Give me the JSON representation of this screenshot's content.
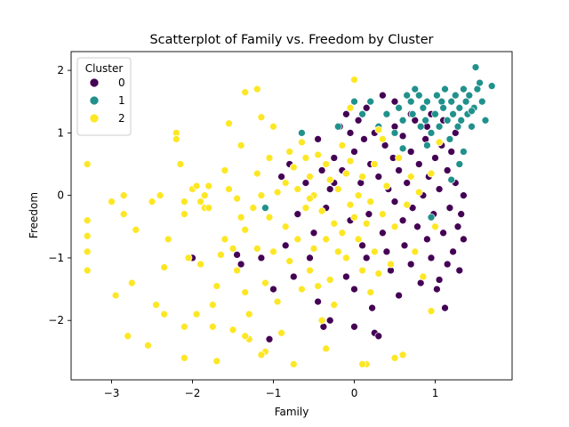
{
  "chart_data": {
    "type": "scatter",
    "title": "Scatterplot of Family vs. Freedom by Cluster",
    "xlabel": "Family",
    "ylabel": "Freedom",
    "xlim": [
      -3.5,
      1.95
    ],
    "ylim": [
      -2.95,
      2.3
    ],
    "xticks": [
      -3,
      -2,
      -1,
      0,
      1
    ],
    "yticks": [
      -2,
      -1,
      0,
      1,
      2
    ],
    "xtick_labels": [
      "−3",
      "−2",
      "−1",
      "0",
      "1"
    ],
    "ytick_labels": [
      "−2",
      "−1",
      "0",
      "1",
      "2"
    ],
    "grid": false,
    "legend": {
      "title": "Cluster",
      "placement": "top-left",
      "entries": [
        "0",
        "1",
        "2"
      ]
    },
    "series": [
      {
        "name": "0",
        "color": "#440154",
        "points": [
          [
            -2.0,
            -1.0
          ],
          [
            -1.45,
            -0.95
          ],
          [
            -1.4,
            -1.1
          ],
          [
            -1.15,
            -1.0
          ],
          [
            -1.05,
            -2.3
          ],
          [
            -1.0,
            -1.5
          ],
          [
            -0.9,
            0.3
          ],
          [
            -0.85,
            -0.8
          ],
          [
            -0.8,
            0.5
          ],
          [
            -0.75,
            -1.3
          ],
          [
            -0.7,
            -0.3
          ],
          [
            -0.6,
            0.2
          ],
          [
            -0.55,
            -1.0
          ],
          [
            -0.5,
            -0.6
          ],
          [
            -0.45,
            0.9
          ],
          [
            -0.45,
            -1.7
          ],
          [
            -0.4,
            0.4
          ],
          [
            -0.38,
            -2.1
          ],
          [
            -0.35,
            -0.2
          ],
          [
            -0.3,
            0.1
          ],
          [
            -0.3,
            -2.0
          ],
          [
            -0.25,
            0.6
          ],
          [
            -0.2,
            -0.9
          ],
          [
            -0.18,
            1.1
          ],
          [
            -0.15,
            0.4
          ],
          [
            -0.1,
            -1.3
          ],
          [
            -0.1,
            1.3
          ],
          [
            -0.05,
            -0.4
          ],
          [
            0.0,
            0.7
          ],
          [
            0.0,
            -1.5
          ],
          [
            0.05,
            1.2
          ],
          [
            0.08,
            0.2
          ],
          [
            0.1,
            -0.8
          ],
          [
            0.12,
            0.9
          ],
          [
            0.15,
            1.4
          ],
          [
            0.18,
            -0.3
          ],
          [
            0.2,
            0.5
          ],
          [
            0.22,
            -1.8
          ],
          [
            0.25,
            1.0
          ],
          [
            0.25,
            -2.2
          ],
          [
            0.3,
            0.3
          ],
          [
            0.3,
            -2.25
          ],
          [
            0.35,
            -0.6
          ],
          [
            0.38,
            0.8
          ],
          [
            0.4,
            1.3
          ],
          [
            0.42,
            0.1
          ],
          [
            0.45,
            -1.2
          ],
          [
            0.48,
            0.6
          ],
          [
            0.5,
            -0.1
          ],
          [
            0.5,
            1.1
          ],
          [
            0.55,
            -1.6
          ],
          [
            0.55,
            0.4
          ],
          [
            0.6,
            -0.4
          ],
          [
            0.6,
            0.95
          ],
          [
            0.62,
            -0.8
          ],
          [
            0.65,
            0.2
          ],
          [
            0.7,
            -1.1
          ],
          [
            0.7,
            0.7
          ],
          [
            0.72,
            -0.2
          ],
          [
            0.75,
            1.2
          ],
          [
            0.78,
            -0.5
          ],
          [
            0.8,
            0.5
          ],
          [
            0.82,
            -1.4
          ],
          [
            0.85,
            0.0
          ],
          [
            0.88,
            0.9
          ],
          [
            0.9,
            -0.7
          ],
          [
            0.92,
            0.3
          ],
          [
            0.95,
            -1.0
          ],
          [
            0.95,
            1.3
          ],
          [
            0.98,
            -0.3
          ],
          [
            1.0,
            0.6
          ],
          [
            1.02,
            -1.5
          ],
          [
            1.05,
            0.1
          ],
          [
            1.08,
            0.8
          ],
          [
            1.1,
            -0.6
          ],
          [
            1.12,
            -1.8
          ],
          [
            1.15,
            0.4
          ],
          [
            1.15,
            -1.1
          ],
          [
            1.18,
            -0.2
          ],
          [
            1.2,
            0.7
          ],
          [
            1.22,
            -0.9
          ],
          [
            1.25,
            0.2
          ],
          [
            1.28,
            -0.5
          ],
          [
            1.3,
            -1.2
          ],
          [
            1.3,
            0.5
          ],
          [
            1.32,
            -0.3
          ],
          [
            1.35,
            -0.7
          ],
          [
            1.35,
            0.0
          ],
          [
            1.25,
            1.0
          ],
          [
            1.1,
            1.2
          ],
          [
            0.9,
            1.1
          ],
          [
            0.7,
            1.3
          ],
          [
            0.5,
            1.5
          ],
          [
            -0.25,
            0.2
          ],
          [
            0.15,
            -1.0
          ],
          [
            0.0,
            -2.1
          ],
          [
            0.35,
            1.6
          ],
          [
            -0.05,
            1.0
          ],
          [
            0.4,
            -0.9
          ],
          [
            1.05,
            -1.35
          ]
        ]
      },
      {
        "name": "1",
        "color": "#21918c",
        "points": [
          [
            -1.1,
            -0.2
          ],
          [
            -0.65,
            1.0
          ],
          [
            -0.2,
            1.1
          ],
          [
            0.0,
            1.5
          ],
          [
            0.1,
            1.3
          ],
          [
            0.2,
            1.5
          ],
          [
            0.3,
            1.1
          ],
          [
            0.4,
            1.3
          ],
          [
            0.5,
            1.0
          ],
          [
            0.55,
            1.4
          ],
          [
            0.6,
            1.2
          ],
          [
            0.65,
            1.6
          ],
          [
            0.7,
            1.5
          ],
          [
            0.72,
            1.3
          ],
          [
            0.75,
            1.7
          ],
          [
            0.8,
            1.6
          ],
          [
            0.82,
            1.1
          ],
          [
            0.85,
            1.4
          ],
          [
            0.88,
            1.2
          ],
          [
            0.9,
            1.5
          ],
          [
            0.95,
            1.0
          ],
          [
            1.0,
            1.3
          ],
          [
            1.02,
            1.6
          ],
          [
            1.05,
            1.1
          ],
          [
            1.08,
            1.5
          ],
          [
            1.1,
            1.4
          ],
          [
            1.12,
            1.7
          ],
          [
            1.15,
            1.2
          ],
          [
            1.18,
            0.9
          ],
          [
            1.2,
            1.5
          ],
          [
            1.22,
            1.3
          ],
          [
            1.25,
            1.6
          ],
          [
            1.28,
            1.1
          ],
          [
            1.3,
            1.4
          ],
          [
            1.32,
            1.2
          ],
          [
            1.35,
            1.7
          ],
          [
            1.38,
            1.5
          ],
          [
            1.4,
            1.3
          ],
          [
            1.42,
            1.6
          ],
          [
            1.45,
            1.1
          ],
          [
            1.48,
            1.4
          ],
          [
            1.5,
            2.05
          ],
          [
            1.52,
            1.7
          ],
          [
            1.55,
            1.8
          ],
          [
            1.58,
            1.5
          ],
          [
            1.62,
            1.2
          ],
          [
            1.7,
            1.75
          ],
          [
            1.45,
            1.35
          ],
          [
            1.2,
            0.25
          ],
          [
            1.3,
            0.5
          ],
          [
            0.95,
            -0.35
          ],
          [
            1.35,
            0.7
          ],
          [
            0.6,
            0.75
          ],
          [
            0.9,
            0.8
          ]
        ]
      },
      {
        "name": "2",
        "color": "#fde725",
        "points": [
          [
            -3.3,
            0.5
          ],
          [
            -3.3,
            -0.4
          ],
          [
            -3.3,
            -0.65
          ],
          [
            -3.3,
            -0.9
          ],
          [
            -3.3,
            -1.2
          ],
          [
            -3.0,
            -0.1
          ],
          [
            -2.95,
            -1.6
          ],
          [
            -2.85,
            0.0
          ],
          [
            -2.85,
            -0.3
          ],
          [
            -2.8,
            -2.25
          ],
          [
            -2.75,
            -1.4
          ],
          [
            -2.7,
            -0.55
          ],
          [
            -2.55,
            -2.4
          ],
          [
            -2.5,
            -0.1
          ],
          [
            -2.45,
            -1.75
          ],
          [
            -2.4,
            0.0
          ],
          [
            -2.35,
            -1.9
          ],
          [
            -2.35,
            -1.15
          ],
          [
            -2.3,
            -0.7
          ],
          [
            -2.2,
            1.0
          ],
          [
            -2.15,
            0.5
          ],
          [
            -2.1,
            -0.1
          ],
          [
            -2.1,
            -0.3
          ],
          [
            -2.1,
            -2.1
          ],
          [
            -2.1,
            -2.6
          ],
          [
            -2.05,
            -1.0
          ],
          [
            -2.0,
            0.1
          ],
          [
            -1.95,
            0.15
          ],
          [
            -1.95,
            -1.9
          ],
          [
            -1.9,
            -0.1
          ],
          [
            -1.9,
            -1.1
          ],
          [
            -1.85,
            -0.2
          ],
          [
            -1.85,
            0.0
          ],
          [
            -1.8,
            -0.2
          ],
          [
            -1.8,
            0.15
          ],
          [
            -1.75,
            -1.75
          ],
          [
            -1.75,
            -2.1
          ],
          [
            -1.7,
            -1.45
          ],
          [
            -1.65,
            -0.95
          ],
          [
            -1.6,
            0.4
          ],
          [
            -1.6,
            -0.7
          ],
          [
            -1.55,
            1.15
          ],
          [
            -1.55,
            0.1
          ],
          [
            -1.5,
            -0.85
          ],
          [
            -1.5,
            -2.15
          ],
          [
            -1.45,
            -0.05
          ],
          [
            -1.45,
            -1.2
          ],
          [
            -1.4,
            0.8
          ],
          [
            -1.4,
            -0.35
          ],
          [
            -1.35,
            -0.55
          ],
          [
            -1.35,
            -1.55
          ],
          [
            -1.3,
            -1.9
          ],
          [
            -1.3,
            -2.3
          ],
          [
            -1.25,
            -0.2
          ],
          [
            -1.2,
            0.35
          ],
          [
            -1.2,
            -0.85
          ],
          [
            -1.15,
            1.25
          ],
          [
            -1.15,
            0.0
          ],
          [
            -1.1,
            -1.4
          ],
          [
            -1.1,
            -2.5
          ],
          [
            -1.05,
            0.6
          ],
          [
            -1.05,
            -0.35
          ],
          [
            -1.0,
            1.1
          ],
          [
            -1.0,
            -0.9
          ],
          [
            -0.95,
            0.05
          ],
          [
            -0.95,
            -1.7
          ],
          [
            -0.9,
            -2.2
          ],
          [
            -0.85,
            0.2
          ],
          [
            -0.85,
            -0.5
          ],
          [
            -0.8,
            0.7
          ],
          [
            -0.8,
            -1.05
          ],
          [
            -0.75,
            0.45
          ],
          [
            -0.75,
            -2.7
          ],
          [
            -0.7,
            0.1
          ],
          [
            -0.7,
            -0.7
          ],
          [
            -0.65,
            -1.5
          ],
          [
            -0.6,
            0.6
          ],
          [
            -0.6,
            -0.2
          ],
          [
            -0.55,
            0.3
          ],
          [
            -0.55,
            -1.2
          ],
          [
            -0.5,
            0.0
          ],
          [
            -0.5,
            -0.85
          ],
          [
            -0.45,
            0.65
          ],
          [
            -0.45,
            -1.45
          ],
          [
            -0.4,
            -0.25
          ],
          [
            -0.4,
            -2.0
          ],
          [
            -0.35,
            0.5
          ],
          [
            -0.35,
            -0.7
          ],
          [
            -0.3,
            0.25
          ],
          [
            -0.3,
            -1.35
          ],
          [
            -0.25,
            -0.45
          ],
          [
            -0.25,
            -1.75
          ],
          [
            -0.2,
            0.1
          ],
          [
            -0.2,
            -0.9
          ],
          [
            -0.15,
            0.8
          ],
          [
            -0.15,
            -0.6
          ],
          [
            -0.1,
            0.35
          ],
          [
            -0.1,
            -1.0
          ],
          [
            -0.05,
            -0.15
          ],
          [
            -0.05,
            0.55
          ],
          [
            0.0,
            -0.35
          ],
          [
            0.0,
            1.85
          ],
          [
            0.05,
            -0.7
          ],
          [
            0.05,
            0.0
          ],
          [
            0.1,
            0.3
          ],
          [
            0.1,
            -1.2
          ],
          [
            0.15,
            -0.45
          ],
          [
            0.15,
            -2.7
          ],
          [
            0.2,
            -0.1
          ],
          [
            0.25,
            0.5
          ],
          [
            0.25,
            -0.9
          ],
          [
            0.3,
            -1.25
          ],
          [
            0.35,
            -0.3
          ],
          [
            0.35,
            0.9
          ],
          [
            0.4,
            0.15
          ],
          [
            0.45,
            -1.1
          ],
          [
            0.5,
            -0.5
          ],
          [
            0.55,
            0.6
          ],
          [
            0.6,
            -2.55
          ],
          [
            0.65,
            -0.15
          ],
          [
            0.7,
            0.3
          ],
          [
            0.75,
            -0.9
          ],
          [
            0.8,
            0.05
          ],
          [
            0.85,
            -1.3
          ],
          [
            0.95,
            0.35
          ],
          [
            0.95,
            -1.85
          ],
          [
            1.0,
            -0.5
          ],
          [
            1.05,
            0.85
          ],
          [
            -1.15,
            -2.55
          ],
          [
            -1.35,
            -2.25
          ],
          [
            -1.7,
            -2.65
          ],
          [
            -0.35,
            -2.45
          ],
          [
            0.1,
            -2.7
          ],
          [
            0.5,
            -2.6
          ],
          [
            -1.35,
            1.65
          ],
          [
            -1.2,
            1.7
          ],
          [
            -2.2,
            0.9
          ],
          [
            -0.05,
            1.4
          ],
          [
            0.3,
            1.05
          ],
          [
            -0.55,
            -0.05
          ],
          [
            0.2,
            -1.55
          ],
          [
            -0.65,
            0.85
          ]
        ]
      }
    ]
  }
}
